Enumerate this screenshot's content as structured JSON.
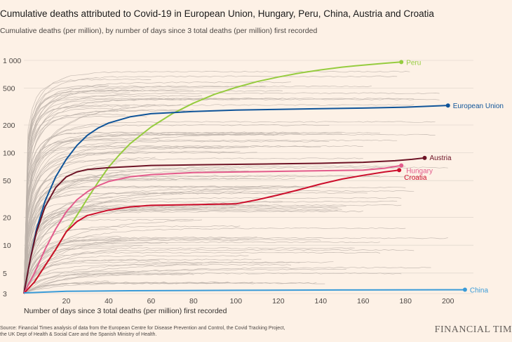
{
  "header": {
    "title": "Cumulative deaths attributed to Covid-19 in European Union, Hungary, Peru, China, Austria and Croatia",
    "subtitle": "Cumulative deaths (per million), by number of days since 3 total deaths (per million) first recorded"
  },
  "footer": {
    "source_line1": "Source: Financial Times analysis of data from the European Centre for Disease Prevention and Control, the Covid Tracking Project,",
    "source_line2": "the UK Dept of Health & Social Care and the Spanish Ministry of Health.",
    "brand": "FINANCIAL TIM"
  },
  "colors": {
    "background": "#fdf1e6",
    "grid": "#e3d9cf",
    "background_lines": "#bdb3aa",
    "peru": "#96cc3f",
    "european_union": "#0f5499",
    "austria": "#6e1426",
    "hungary": "#e35b8c",
    "croatia": "#cc0e2c",
    "china": "#3a9bd8"
  },
  "chart_data": {
    "type": "line",
    "title": "Cumulative deaths attributed to Covid-19 in European Union, Hungary, Peru, China, Austria and Croatia",
    "subtitle": "Cumulative deaths (per million), by number of days since 3 total deaths (per million) first recorded",
    "xlabel": "Number of days since 3 total deaths (per million) first recorded",
    "ylabel": "Cumulative deaths (per million)",
    "yscale": "log",
    "xlim": [
      0,
      212
    ],
    "ylim": [
      3,
      1000
    ],
    "x_ticks": [
      20,
      40,
      60,
      80,
      100,
      120,
      140,
      160,
      180,
      200
    ],
    "x_tick_labels": [
      "20",
      "40",
      "60",
      "80",
      "100",
      "120",
      "140",
      "160",
      "180",
      "200"
    ],
    "y_ticks": [
      3,
      5,
      10,
      20,
      50,
      100,
      200,
      500,
      1000
    ],
    "y_tick_labels": [
      "3",
      "5",
      "10",
      "20",
      "50",
      "100",
      "200",
      "500",
      "1 000"
    ],
    "grid": true,
    "background_series_count": 120,
    "series": [
      {
        "name": "Peru",
        "label": "Peru",
        "key": "peru",
        "label_side": "right",
        "x": [
          0,
          5,
          10,
          15,
          20,
          25,
          30,
          35,
          40,
          45,
          50,
          60,
          70,
          80,
          90,
          100,
          110,
          120,
          130,
          140,
          150,
          160,
          170,
          178
        ],
        "y": [
          3,
          4,
          6,
          9,
          14,
          21,
          32,
          48,
          70,
          95,
          125,
          190,
          265,
          345,
          430,
          510,
          590,
          660,
          730,
          790,
          845,
          890,
          930,
          960
        ]
      },
      {
        "name": "European Union",
        "label": "European Union",
        "key": "european_union",
        "label_side": "right",
        "x": [
          0,
          3,
          6,
          10,
          15,
          20,
          25,
          30,
          35,
          40,
          50,
          60,
          80,
          100,
          120,
          140,
          160,
          180,
          200
        ],
        "y": [
          3,
          7,
          15,
          30,
          55,
          85,
          120,
          155,
          185,
          210,
          245,
          265,
          280,
          290,
          295,
          300,
          305,
          312,
          325
        ]
      },
      {
        "name": "Austria",
        "label": "Austria",
        "key": "austria",
        "label_side": "right",
        "x": [
          0,
          3,
          6,
          10,
          15,
          20,
          25,
          30,
          40,
          50,
          60,
          80,
          100,
          120,
          140,
          160,
          175,
          183,
          189
        ],
        "y": [
          3,
          7,
          14,
          26,
          42,
          55,
          62,
          66,
          69,
          71,
          73,
          74,
          75,
          76,
          77,
          79,
          82,
          85,
          88
        ]
      },
      {
        "name": "Hungary",
        "label": "Hungary",
        "key": "hungary",
        "label_side": "right",
        "x": [
          0,
          5,
          10,
          15,
          20,
          25,
          30,
          35,
          40,
          50,
          60,
          80,
          100,
          120,
          140,
          160,
          170,
          178
        ],
        "y": [
          3,
          5,
          9,
          15,
          23,
          31,
          38,
          44,
          49,
          55,
          58,
          61,
          62,
          63,
          64,
          65,
          68,
          73
        ]
      },
      {
        "name": "Croatia",
        "label": "Croatia",
        "key": "croatia",
        "label_side": "right",
        "x": [
          0,
          5,
          10,
          15,
          20,
          25,
          30,
          40,
          50,
          60,
          80,
          100,
          110,
          120,
          130,
          140,
          150,
          160,
          170,
          177
        ],
        "y": [
          3,
          4,
          6,
          9,
          14,
          18,
          21,
          24,
          26,
          27,
          27.5,
          28,
          31,
          35,
          40,
          46,
          52,
          57,
          62,
          65
        ]
      },
      {
        "name": "China",
        "label": "China",
        "key": "china",
        "label_side": "right",
        "x": [
          0,
          20,
          50,
          100,
          150,
          208
        ],
        "y": [
          3.05,
          3.18,
          3.22,
          3.25,
          3.28,
          3.3
        ]
      }
    ]
  }
}
